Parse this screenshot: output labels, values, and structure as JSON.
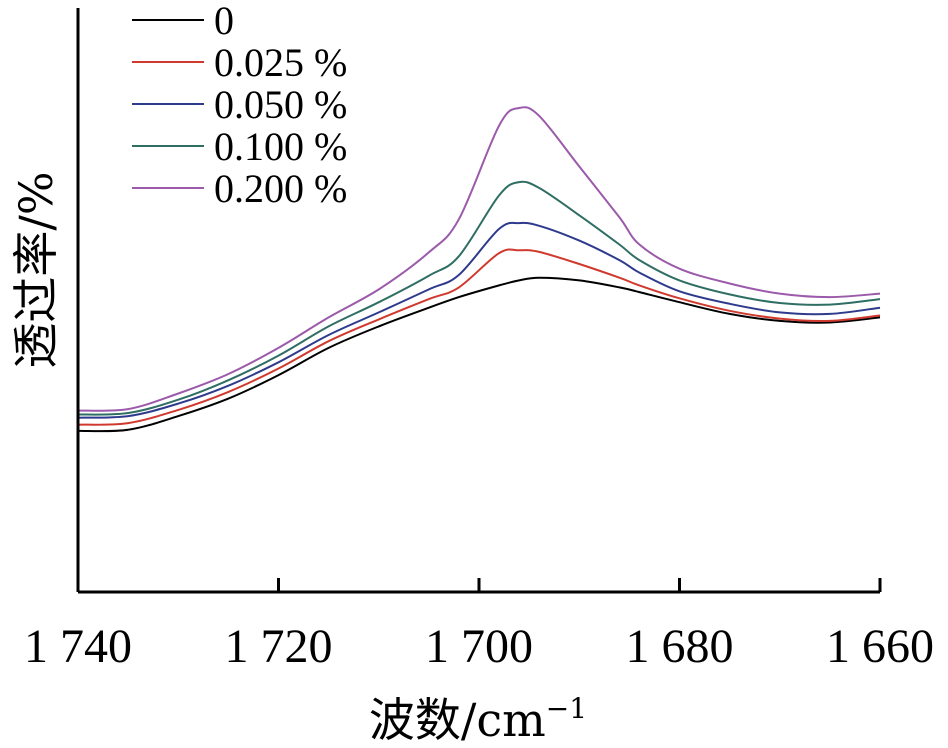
{
  "chart_data": {
    "type": "line",
    "title": "",
    "xlabel_main": "波数/cm",
    "xlabel_sup": "−1",
    "ylabel": "透过率/%",
    "xlim": [
      1740,
      1660
    ],
    "x_reversed": true,
    "ylim": [
      0,
      100
    ],
    "y_ticks_shown": false,
    "grid": false,
    "legend_position": "top-left",
    "xticks": [
      {
        "value": 1740,
        "label": "1 740"
      },
      {
        "value": 1720,
        "label": "1 720"
      },
      {
        "value": 1700,
        "label": "1 700"
      },
      {
        "value": 1680,
        "label": "1 680"
      },
      {
        "value": 1660,
        "label": "1 660"
      }
    ],
    "x": [
      1740,
      1735,
      1730,
      1725,
      1720,
      1715,
      1710,
      1705,
      1702,
      1698,
      1696,
      1694,
      1690,
      1686,
      1684,
      1680,
      1675,
      1670,
      1665,
      1660
    ],
    "series": [
      {
        "name": "0",
        "color": "#000000",
        "values": [
          17.2,
          17.5,
          21.0,
          25.5,
          31.5,
          38.5,
          44.0,
          48.8,
          51.5,
          54.5,
          55.8,
          56.5,
          55.8,
          54.0,
          52.8,
          50.2,
          47.2,
          45.4,
          45.0,
          46.3
        ]
      },
      {
        "name": "0.025 %",
        "color": "#d03a2e",
        "values": [
          18.8,
          19.2,
          22.6,
          27.2,
          33.2,
          40.2,
          45.8,
          51.0,
          54.0,
          62.8,
          63.5,
          63.1,
          60.0,
          56.5,
          54.5,
          51.2,
          48.0,
          46.0,
          45.4,
          46.8
        ]
      },
      {
        "name": "0.050 %",
        "color": "#2e3a8c",
        "values": [
          20.6,
          21.0,
          24.2,
          28.8,
          34.8,
          41.8,
          47.6,
          53.5,
          57.2,
          69.0,
          70.5,
          69.8,
          66.0,
          61.0,
          57.8,
          53.0,
          49.8,
          47.6,
          47.2,
          48.8
        ]
      },
      {
        "name": "0.100 %",
        "color": "#2f6e63",
        "values": [
          21.4,
          21.8,
          25.2,
          30.2,
          36.5,
          44.0,
          50.2,
          57.0,
          62.0,
          77.6,
          81.0,
          79.5,
          72.5,
          65.0,
          61.0,
          55.8,
          52.2,
          50.0,
          49.6,
          51.0
        ]
      },
      {
        "name": "0.200 %",
        "color": "#9b5aaa",
        "values": [
          22.4,
          22.8,
          26.8,
          31.8,
          38.5,
          46.3,
          53.5,
          63.0,
          71.5,
          95.5,
          100.0,
          98.0,
          85.0,
          72.0,
          65.0,
          58.8,
          55.0,
          52.4,
          51.5,
          52.4
        ]
      }
    ]
  }
}
